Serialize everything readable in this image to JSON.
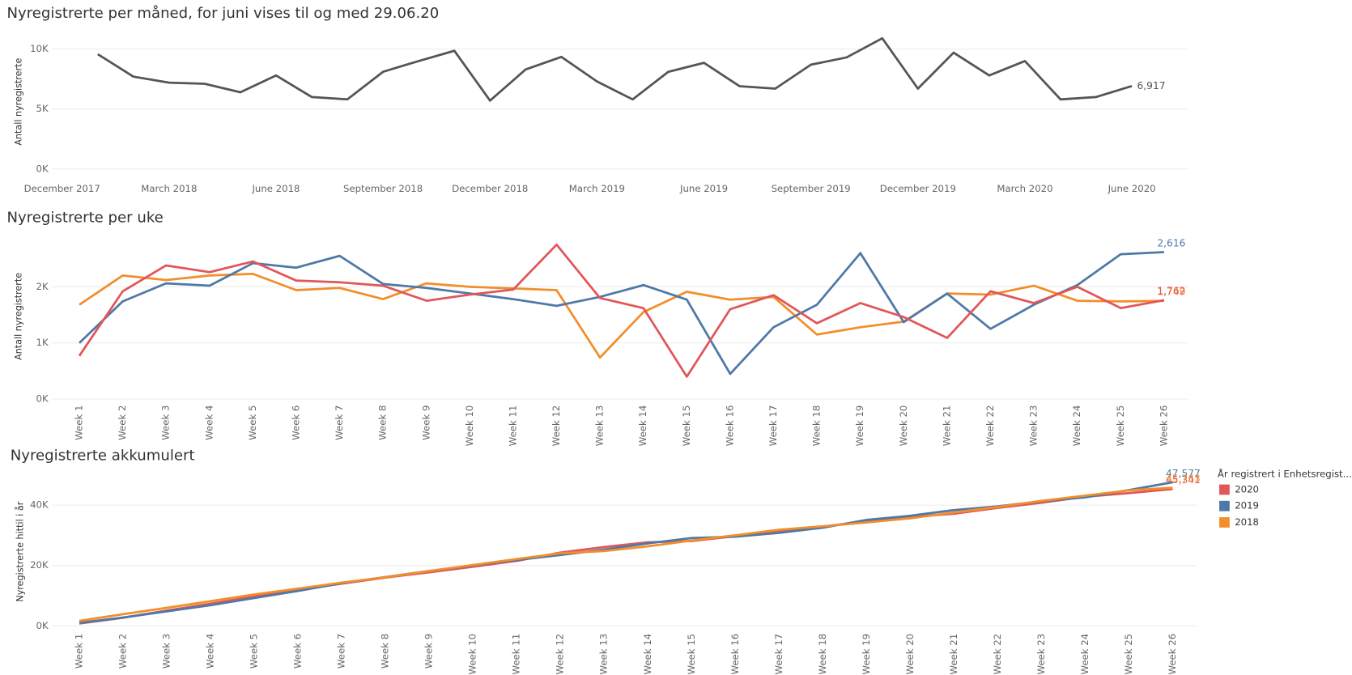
{
  "chart_data": [
    {
      "type": "line",
      "title": "Nyregistrerte per måned, for juni vises til og med 29.06.20",
      "y_label": "Antall nyregistrerte",
      "color": "#555555",
      "x": [
        "2018-01",
        "2018-02",
        "2018-03",
        "2018-04",
        "2018-05",
        "2018-06",
        "2018-07",
        "2018-08",
        "2018-09",
        "2018-10",
        "2018-11",
        "2018-12",
        "2019-01",
        "2019-02",
        "2019-03",
        "2019-04",
        "2019-05",
        "2019-06",
        "2019-07",
        "2019-08",
        "2019-09",
        "2019-10",
        "2019-11",
        "2019-12",
        "2020-01",
        "2020-02",
        "2020-03",
        "2020-04",
        "2020-05",
        "2020-06"
      ],
      "values": [
        9570,
        7700,
        7200,
        7100,
        6400,
        7800,
        6000,
        5800,
        8100,
        9000,
        9860,
        5700,
        8300,
        9350,
        7300,
        5800,
        8100,
        8850,
        6900,
        6700,
        8700,
        9300,
        10900,
        6700,
        9700,
        7800,
        9000,
        5800,
        6000,
        6917
      ],
      "value_labels": [
        null,
        null,
        null,
        null,
        null,
        null,
        null,
        null,
        null,
        null,
        null,
        null,
        null,
        null,
        null,
        null,
        null,
        null,
        null,
        null,
        null,
        null,
        null,
        null,
        null,
        null,
        null,
        null,
        null,
        "6,917"
      ],
      "xlim": [
        "2017-12",
        "2020-07"
      ],
      "xticks": [
        {
          "value": "2017-12",
          "label": "December 2017"
        },
        {
          "value": "2018-03",
          "label": "March 2018"
        },
        {
          "value": "2018-06",
          "label": "June 2018"
        },
        {
          "value": "2018-09",
          "label": "September 2018"
        },
        {
          "value": "2018-12",
          "label": "December 2018"
        },
        {
          "value": "2019-03",
          "label": "March 2019"
        },
        {
          "value": "2019-06",
          "label": "June 2019"
        },
        {
          "value": "2019-09",
          "label": "September 2019"
        },
        {
          "value": "2019-12",
          "label": "December 2019"
        },
        {
          "value": "2020-03",
          "label": "March 2020"
        },
        {
          "value": "2020-06",
          "label": "June 2020"
        }
      ],
      "ylim": [
        0,
        11000
      ],
      "yticks": [
        {
          "value": 0,
          "label": "0K"
        },
        {
          "value": 5000,
          "label": "5K"
        },
        {
          "value": 10000,
          "label": "10K"
        }
      ],
      "grid": true
    },
    {
      "type": "line",
      "title": "Nyregistrerte per uke",
      "y_label": "Antall nyregistrerte",
      "categories": [
        "Week 1",
        "Week 2",
        "Week 3",
        "Week 4",
        "Week 5",
        "Week 6",
        "Week 7",
        "Week 8",
        "Week 9",
        "Week 10",
        "Week 11",
        "Week 12",
        "Week 13",
        "Week 14",
        "Week 15",
        "Week 16",
        "Week 17",
        "Week 18",
        "Week 19",
        "Week 20",
        "Week 21",
        "Week 22",
        "Week 23",
        "Week 24",
        "Week 25",
        "Week 26"
      ],
      "series": [
        {
          "color": "#f28e2b",
          "values": [
            1680,
            2200,
            2120,
            2200,
            2230,
            1940,
            1980,
            1780,
            2060,
            2000,
            1970,
            1940,
            740,
            1550,
            1910,
            1770,
            1820,
            1150,
            1280,
            1380,
            1880,
            1860,
            2020,
            1750,
            1740,
            1749
          ],
          "value_labels": [
            null,
            null,
            null,
            null,
            null,
            null,
            null,
            null,
            null,
            null,
            null,
            null,
            null,
            null,
            null,
            null,
            null,
            null,
            null,
            null,
            null,
            null,
            null,
            null,
            null,
            "1,749"
          ]
        },
        {
          "color": "#4e79a7",
          "values": [
            1000,
            1740,
            2060,
            2020,
            2420,
            2340,
            2550,
            2050,
            1980,
            1880,
            1780,
            1660,
            1820,
            2030,
            1770,
            450,
            1280,
            1680,
            2600,
            1370,
            1880,
            1250,
            1680,
            2030,
            2580,
            2616
          ],
          "value_labels": [
            null,
            null,
            null,
            null,
            null,
            null,
            null,
            null,
            null,
            null,
            null,
            null,
            null,
            null,
            null,
            null,
            null,
            null,
            null,
            null,
            null,
            null,
            null,
            null,
            null,
            "2,616"
          ]
        },
        {
          "color": "#e15759",
          "values": [
            770,
            1920,
            2380,
            2260,
            2450,
            2110,
            2080,
            2020,
            1750,
            1860,
            1950,
            2750,
            1800,
            1620,
            400,
            1600,
            1850,
            1350,
            1710,
            1460,
            1090,
            1920,
            1710,
            2000,
            1620,
            1762
          ],
          "value_labels": [
            null,
            null,
            null,
            null,
            null,
            null,
            null,
            null,
            null,
            null,
            null,
            null,
            null,
            null,
            null,
            null,
            null,
            null,
            null,
            null,
            null,
            null,
            null,
            null,
            null,
            "1,762"
          ]
        }
      ],
      "ylim": [
        0,
        2900
      ],
      "yticks": [
        {
          "value": 0,
          "label": "0K"
        },
        {
          "value": 1000,
          "label": "1K"
        },
        {
          "value": 2000,
          "label": "2K"
        }
      ],
      "grid": true
    },
    {
      "type": "line",
      "title": "Nyregistrerte akkumulert",
      "y_label": "Nyregistrerte hittil i år",
      "legend_title": "År registrert i Enhetsregist...",
      "legend": "right",
      "categories": [
        "Week 1",
        "Week 2",
        "Week 3",
        "Week 4",
        "Week 5",
        "Week 6",
        "Week 7",
        "Week 8",
        "Week 9",
        "Week 10",
        "Week 11",
        "Week 12",
        "Week 13",
        "Week 14",
        "Week 15",
        "Week 16",
        "Week 17",
        "Week 18",
        "Week 19",
        "Week 20",
        "Week 21",
        "Week 22",
        "Week 23",
        "Week 24",
        "Week 25",
        "Week 26"
      ],
      "series": [
        {
          "name": "2020",
          "color": "#e15759",
          "values": [
            770,
            2690,
            5070,
            7330,
            9780,
            11890,
            13970,
            15990,
            17740,
            19600,
            21550,
            24300,
            26100,
            27720,
            28120,
            29720,
            31570,
            32920,
            34630,
            36090,
            37180,
            39100,
            40810,
            42810,
            44000,
            45341
          ],
          "value_labels": [
            null,
            null,
            null,
            null,
            null,
            null,
            null,
            null,
            null,
            null,
            null,
            null,
            null,
            null,
            null,
            null,
            null,
            null,
            null,
            null,
            null,
            null,
            null,
            null,
            null,
            "45,341"
          ]
        },
        {
          "name": "2019",
          "color": "#4e79a7",
          "values": [
            1000,
            2740,
            4800,
            6820,
            9240,
            11580,
            14130,
            16180,
            18160,
            20040,
            21820,
            23480,
            25300,
            27330,
            29100,
            29550,
            30830,
            32510,
            35110,
            36480,
            38360,
            39610,
            41290,
            42600,
            45000,
            47577
          ],
          "value_labels": [
            null,
            null,
            null,
            null,
            null,
            null,
            null,
            null,
            null,
            null,
            null,
            null,
            null,
            null,
            null,
            null,
            null,
            null,
            null,
            null,
            null,
            null,
            null,
            null,
            null,
            "47,577"
          ]
        },
        {
          "name": "2018",
          "color": "#f28e2b",
          "values": [
            1650,
            3850,
            5970,
            8170,
            10400,
            12340,
            14320,
            16100,
            18160,
            20160,
            22130,
            24070,
            24810,
            26360,
            28270,
            30040,
            31860,
            33010,
            34290,
            35670,
            37550,
            39410,
            41430,
            43180,
            44920,
            45763
          ],
          "value_labels": [
            null,
            null,
            null,
            null,
            null,
            null,
            null,
            null,
            null,
            null,
            null,
            null,
            null,
            null,
            null,
            null,
            null,
            null,
            null,
            null,
            null,
            null,
            null,
            null,
            null,
            "45,763"
          ]
        }
      ],
      "ylim": [
        -2000,
        50000
      ],
      "yticks": [
        {
          "value": 0,
          "label": "0K"
        },
        {
          "value": 20000,
          "label": "20K"
        },
        {
          "value": 40000,
          "label": "40K"
        }
      ],
      "grid": true
    }
  ]
}
